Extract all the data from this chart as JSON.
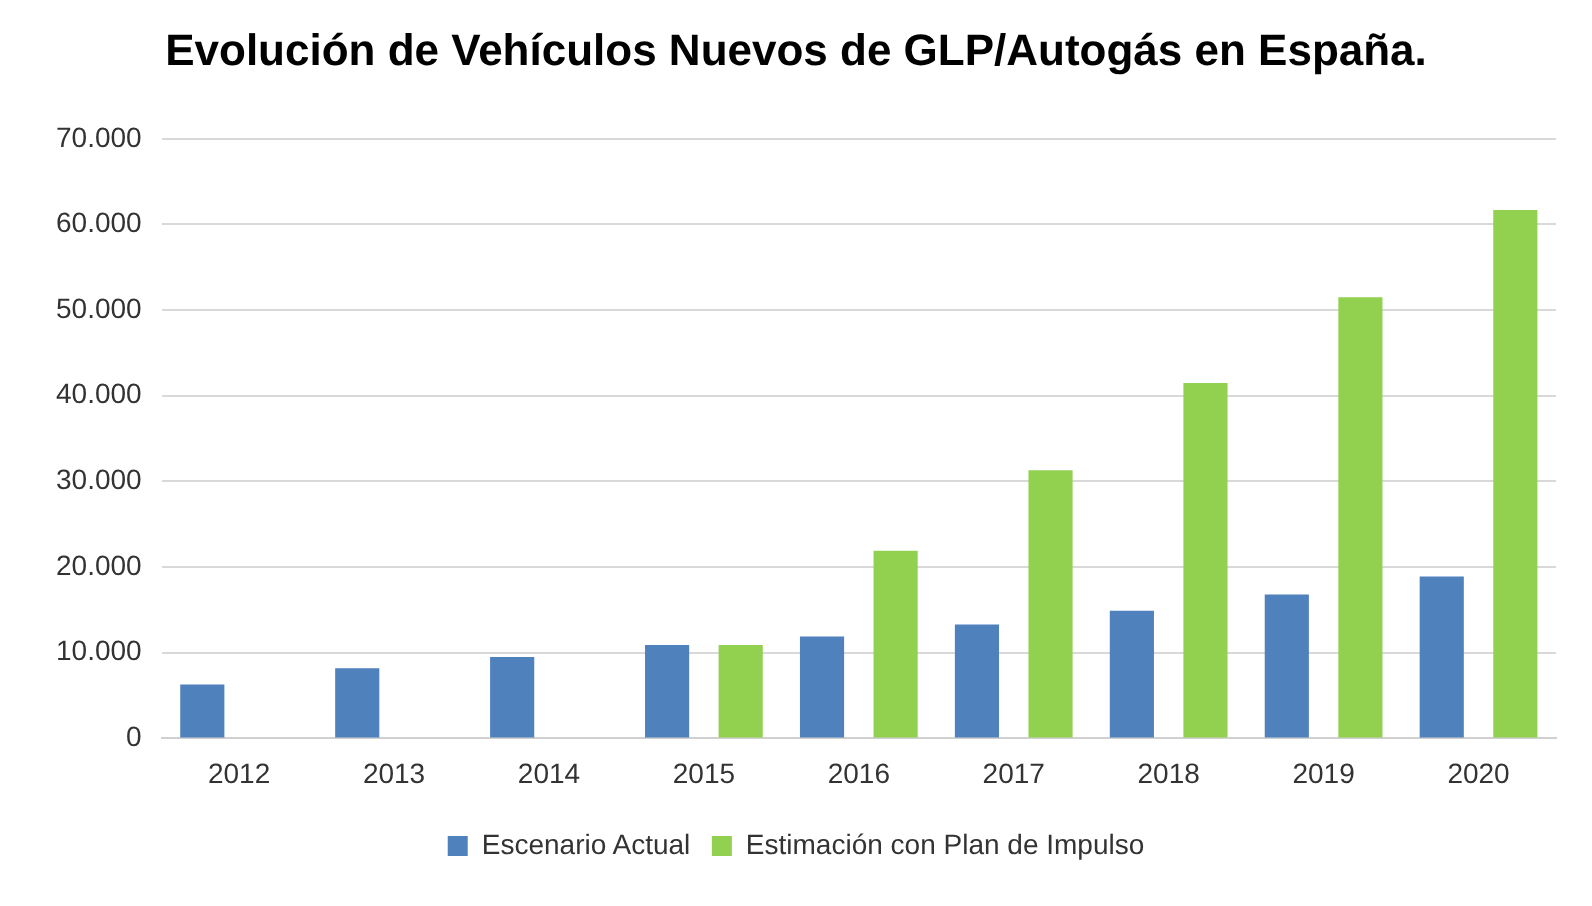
{
  "chart_data": {
    "type": "bar",
    "title": "Evolución de Vehículos Nuevos de GLP/Autogás en España.",
    "categories": [
      "2012",
      "2013",
      "2014",
      "2015",
      "2016",
      "2017",
      "2018",
      "2019",
      "2020"
    ],
    "series": [
      {
        "name": "Escenario Actual",
        "color": "#4f81bd",
        "values": [
          6300,
          8200,
          9500,
          10900,
          11900,
          13300,
          14900,
          16800,
          18900
        ]
      },
      {
        "name": "Estimación con Plan de Impulso",
        "color": "#92d050",
        "values": [
          null,
          null,
          null,
          10900,
          21900,
          31300,
          41500,
          51500,
          61700
        ]
      }
    ],
    "ylim": [
      0,
      70000
    ],
    "yticks": [
      {
        "value": 0,
        "label": "0"
      },
      {
        "value": 10000,
        "label": "10.000"
      },
      {
        "value": 20000,
        "label": "20.000"
      },
      {
        "value": 30000,
        "label": "30.000"
      },
      {
        "value": 40000,
        "label": "40.000"
      },
      {
        "value": 50000,
        "label": "50.000"
      },
      {
        "value": 60000,
        "label": "60.000"
      },
      {
        "value": 70000,
        "label": "70.000"
      }
    ],
    "grid": "y",
    "legend": "bottom"
  }
}
